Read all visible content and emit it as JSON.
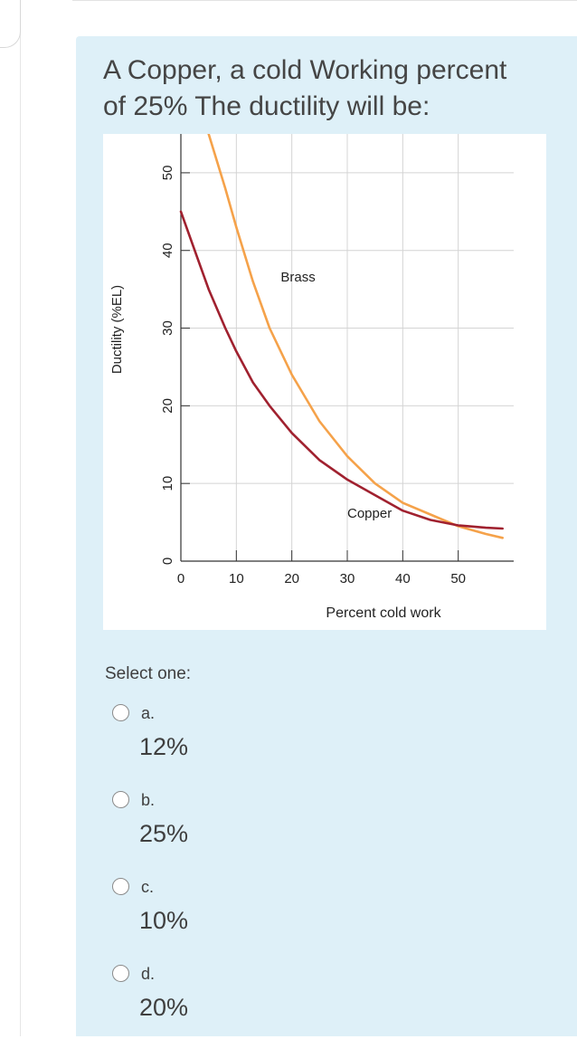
{
  "question": {
    "line1": "A Copper, a cold Working percent",
    "line2": "of 25%  The ductility will be:"
  },
  "chart_data": {
    "type": "line",
    "xlabel": "Percent cold work",
    "ylabel": "Ductility (%EL)",
    "xlim": [
      0,
      60
    ],
    "ylim": [
      0,
      55
    ],
    "x_ticks": [
      "0",
      "10",
      "20",
      "30",
      "40",
      "50"
    ],
    "y_ticks": [
      "0",
      "10",
      "20",
      "30",
      "40",
      "50"
    ],
    "grid": true,
    "series": [
      {
        "name": "Brass",
        "color": "#f5a24a",
        "x": [
          5,
          8,
          10,
          13,
          16,
          20,
          25,
          30,
          35,
          40,
          45,
          50,
          55,
          58
        ],
        "y": [
          55,
          48,
          43,
          36,
          30,
          24,
          18,
          13.5,
          10,
          7.5,
          6,
          4.5,
          3.5,
          3
        ]
      },
      {
        "name": "Copper",
        "color": "#a0212f",
        "x": [
          0,
          3,
          5,
          8,
          10,
          13,
          16,
          20,
          25,
          30,
          35,
          40,
          45,
          50,
          55,
          58
        ],
        "y": [
          45,
          39,
          35,
          30,
          27,
          23,
          20,
          16.5,
          13,
          10.5,
          8.5,
          6.5,
          5.3,
          4.6,
          4.3,
          4.2
        ]
      }
    ]
  },
  "select_label": "Select one:",
  "options": [
    {
      "letter": "a.",
      "text": "12%"
    },
    {
      "letter": "b.",
      "text": "25%"
    },
    {
      "letter": "c.",
      "text": "10%"
    },
    {
      "letter": "d.",
      "text": "20%"
    }
  ]
}
